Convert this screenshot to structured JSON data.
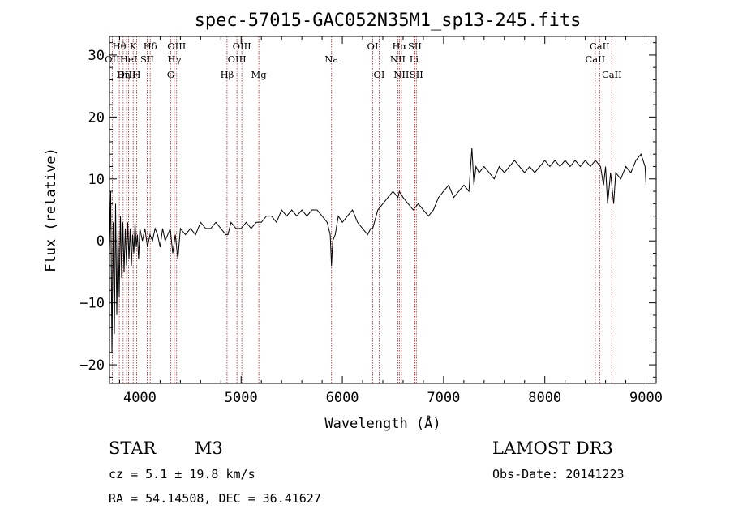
{
  "header": {
    "title": "spec-57015-GAC052N35M1_sp13-245.fits"
  },
  "footer": {
    "class_label": "STAR",
    "subclass_label": "M3",
    "redshift_text": "cz = 5.1 ± 19.8 km/s",
    "coords_text": "RA =  54.14508, DEC =  36.41627",
    "survey_label": "LAMOST DR3",
    "obs_date_text": "Obs-Date: 20141223"
  },
  "colors": {
    "spectrum": "#000000",
    "marker_lines": "#b22222",
    "axes": "#000000",
    "background": "#ffffff"
  },
  "chart_data": {
    "type": "line",
    "title": "spec-57015-GAC052N35M1_sp13-245.fits",
    "xlabel": "Wavelength (Å)",
    "ylabel": "Flux (relative)",
    "xlim": [
      3700,
      9100
    ],
    "ylim": [
      -23,
      33
    ],
    "xticks": [
      4000,
      5000,
      6000,
      7000,
      8000,
      9000
    ],
    "yticks": [
      -20,
      -10,
      0,
      10,
      20,
      30
    ],
    "grid": false,
    "series": [
      {
        "name": "spectrum",
        "x": [
          3700,
          3712,
          3724,
          3736,
          3748,
          3760,
          3772,
          3784,
          3796,
          3808,
          3820,
          3832,
          3844,
          3856,
          3868,
          3880,
          3892,
          3904,
          3916,
          3928,
          3940,
          3952,
          3964,
          3976,
          3988,
          4000,
          4025,
          4050,
          4075,
          4100,
          4125,
          4150,
          4175,
          4200,
          4225,
          4250,
          4275,
          4300,
          4325,
          4350,
          4375,
          4400,
          4450,
          4500,
          4550,
          4600,
          4650,
          4700,
          4750,
          4800,
          4850,
          4870,
          4900,
          4950,
          5000,
          5050,
          5100,
          5150,
          5200,
          5250,
          5300,
          5350,
          5400,
          5450,
          5500,
          5550,
          5600,
          5650,
          5700,
          5750,
          5800,
          5850,
          5880,
          5893,
          5905,
          5930,
          5960,
          6000,
          6050,
          6100,
          6150,
          6200,
          6250,
          6280,
          6300,
          6350,
          6400,
          6450,
          6500,
          6550,
          6563,
          6600,
          6650,
          6700,
          6750,
          6800,
          6850,
          6900,
          6950,
          7000,
          7050,
          7100,
          7150,
          7200,
          7250,
          7280,
          7300,
          7320,
          7350,
          7400,
          7450,
          7500,
          7550,
          7600,
          7650,
          7700,
          7750,
          7800,
          7850,
          7900,
          7950,
          8000,
          8050,
          8100,
          8150,
          8200,
          8250,
          8300,
          8350,
          8400,
          8450,
          8500,
          8550,
          8580,
          8600,
          8620,
          8650,
          8680,
          8700,
          8750,
          8800,
          8850,
          8900,
          8950,
          8990,
          9000
        ],
        "values": [
          -2,
          8,
          -18,
          3,
          -15,
          6,
          -12,
          2,
          -9,
          4,
          -6,
          3,
          -5,
          2,
          -4,
          3,
          -3,
          2,
          -4,
          1,
          -2,
          3,
          -1,
          1,
          -3,
          2,
          0,
          2,
          -1,
          1,
          0,
          2,
          1,
          -1,
          2,
          0,
          1,
          2,
          -2,
          1,
          -3,
          2,
          1,
          2,
          1,
          3,
          2,
          2,
          3,
          2,
          1,
          1,
          3,
          2,
          2,
          3,
          2,
          3,
          3,
          4,
          4,
          3,
          5,
          4,
          5,
          4,
          5,
          4,
          5,
          5,
          4,
          3,
          1,
          -4,
          0,
          1,
          4,
          3,
          4,
          5,
          3,
          2,
          1,
          2,
          2,
          5,
          6,
          7,
          8,
          7,
          8,
          7,
          6,
          5,
          6,
          5,
          4,
          5,
          7,
          8,
          9,
          7,
          8,
          9,
          8,
          15,
          9,
          12,
          11,
          12,
          11,
          10,
          12,
          11,
          12,
          13,
          12,
          11,
          12,
          11,
          12,
          13,
          12,
          13,
          12,
          13,
          12,
          13,
          12,
          13,
          12,
          13,
          12,
          9,
          12,
          6,
          11,
          6,
          11,
          10,
          12,
          11,
          13,
          14,
          12,
          9
        ]
      }
    ],
    "reference_lines": [
      {
        "label": "Hθ",
        "wavelength": 3797,
        "row": 1
      },
      {
        "label": "OII",
        "wavelength": 3727,
        "row": 2
      },
      {
        "label": "OIII",
        "wavelength": 3869,
        "row": 3
      },
      {
        "label": "K",
        "wavelength": 3934,
        "row": 1
      },
      {
        "label": "HeI",
        "wavelength": 3889,
        "row": 2
      },
      {
        "label": "Hη",
        "wavelength": 3835,
        "row": 3
      },
      {
        "label": "Hδ",
        "wavelength": 4102,
        "row": 1
      },
      {
        "label": "SII",
        "wavelength": 4072,
        "row": 2
      },
      {
        "label": "H",
        "wavelength": 3969,
        "row": 3
      },
      {
        "label": "OIII",
        "wavelength": 4363,
        "row": 1
      },
      {
        "label": "Hγ",
        "wavelength": 4340,
        "row": 2
      },
      {
        "label": "G",
        "wavelength": 4304,
        "row": 3
      },
      {
        "label": "OIII",
        "wavelength": 5007,
        "row": 1
      },
      {
        "label": "OIII",
        "wavelength": 4959,
        "row": 2
      },
      {
        "label": "Hβ",
        "wavelength": 4861,
        "row": 3
      },
      {
        "label": "Mg",
        "wavelength": 5175,
        "row": 3
      },
      {
        "label": "Na",
        "wavelength": 5893,
        "row": 2
      },
      {
        "label": "OI",
        "wavelength": 6300,
        "row": 1
      },
      {
        "label": "OI",
        "wavelength": 6364,
        "row": 3
      },
      {
        "label": "Hα",
        "wavelength": 6563,
        "row": 1
      },
      {
        "label": "NII",
        "wavelength": 6548,
        "row": 2
      },
      {
        "label": "NII",
        "wavelength": 6583,
        "row": 3
      },
      {
        "label": "SII",
        "wavelength": 6716,
        "row": 1
      },
      {
        "label": "Li",
        "wavelength": 6708,
        "row": 2
      },
      {
        "label": "SII",
        "wavelength": 6731,
        "row": 3
      },
      {
        "label": "CaII",
        "wavelength": 8542,
        "row": 1
      },
      {
        "label": "CaII",
        "wavelength": 8498,
        "row": 2
      },
      {
        "label": "CaII",
        "wavelength": 8662,
        "row": 3
      }
    ]
  }
}
